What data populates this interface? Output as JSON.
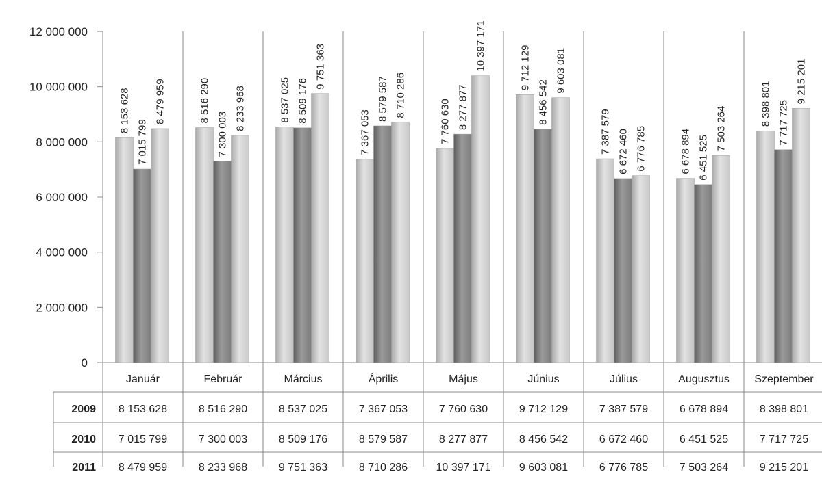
{
  "chart_data": {
    "type": "bar",
    "title": "",
    "xlabel": "",
    "ylabel": "",
    "ylim": [
      0,
      12000000
    ],
    "yticks": [
      "0",
      "2 000 000",
      "4 000 000",
      "6 000 000",
      "8 000 000",
      "10 000 000",
      "12 000 000"
    ],
    "categories": [
      "Január",
      "Február",
      "Március",
      "Április",
      "Május",
      "Június",
      "Július",
      "Augusztus",
      "Szeptember"
    ],
    "series": [
      {
        "name": "2009",
        "color": "#c4c4c4",
        "values": [
          8153628,
          8516290,
          8537025,
          7367053,
          7760630,
          9712129,
          7387579,
          6678894,
          8398801
        ],
        "labels": [
          "8 153 628",
          "8 516 290",
          "8 537 025",
          "7 367 053",
          "7 760 630",
          "9 712 129",
          "7 387 579",
          "6 678 894",
          "8 398 801"
        ]
      },
      {
        "name": "2010",
        "color": "#7d7d7d",
        "values": [
          7015799,
          7300003,
          8509176,
          8579587,
          8277877,
          8456542,
          6672460,
          6451525,
          7717725
        ],
        "labels": [
          "7 015 799",
          "7 300 003",
          "8 509 176",
          "8 579 587",
          "8 277 877",
          "8 456 542",
          "6 672 460",
          "6 451 525",
          "7 717 725"
        ]
      },
      {
        "name": "2011",
        "color": "#c9c9c9",
        "values": [
          8479959,
          8233968,
          9751363,
          8710286,
          10397171,
          9603081,
          6776785,
          7503264,
          9215201
        ],
        "labels": [
          "8 479 959",
          "8 233 968",
          "9 751 363",
          "8 710 286",
          "10 397 171",
          "9 603 081",
          "6 776 785",
          "7 503 264",
          "9 215 201"
        ]
      }
    ],
    "grid": false,
    "legend": "data table below chart"
  }
}
